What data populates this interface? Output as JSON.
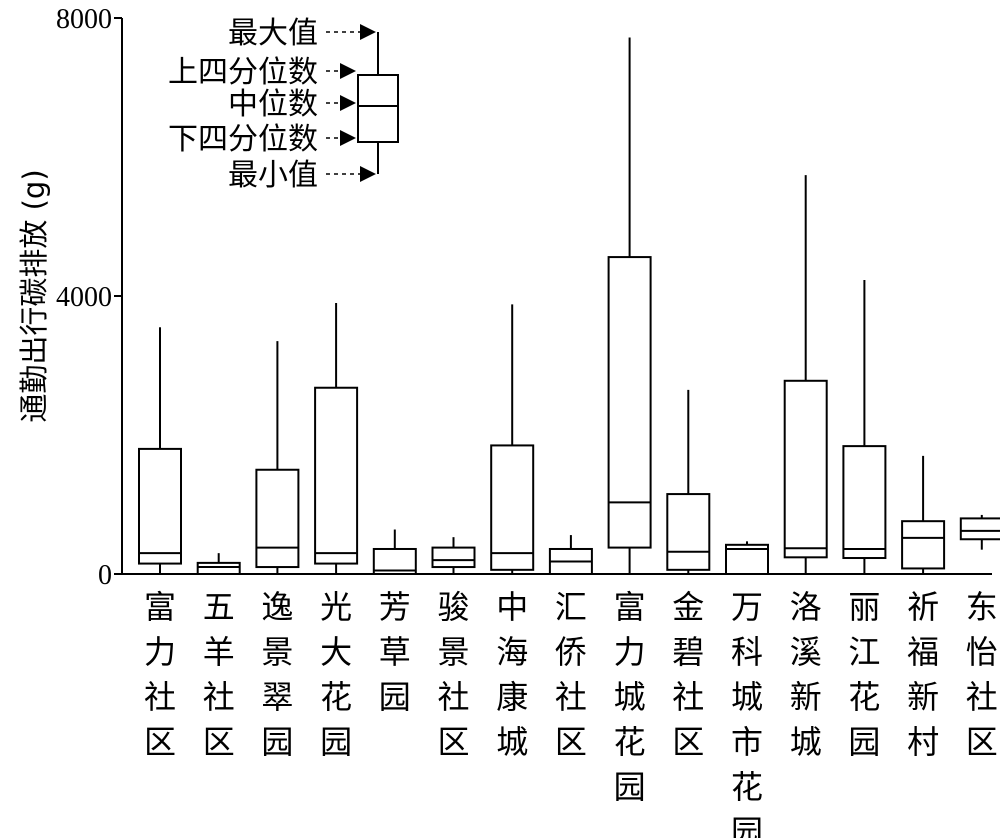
{
  "chart_data": {
    "type": "box",
    "ylabel": "通勤出行碳排放 (g)",
    "ylim": [
      0,
      8000
    ],
    "yticks": [
      "0",
      "4000",
      "8000"
    ],
    "categories": [
      "富力社区",
      "五羊社区",
      "逸景翠园",
      "光大花园",
      "芳草园",
      "骏景社区",
      "中海康城",
      "汇侨社区",
      "富力城花园",
      "金碧社区",
      "万科城市花园",
      "洛溪新城",
      "丽江花园",
      "祈福新村",
      "东怡社区"
    ],
    "boxes": [
      {
        "min": 0,
        "q1": 150,
        "median": 300,
        "q3": 1800,
        "max": 3550
      },
      {
        "min": 0,
        "q1": 0,
        "median": 100,
        "q3": 160,
        "max": 300
      },
      {
        "min": 0,
        "q1": 100,
        "median": 380,
        "q3": 1500,
        "max": 3350
      },
      {
        "min": 0,
        "q1": 150,
        "median": 300,
        "q3": 2680,
        "max": 3900
      },
      {
        "min": 0,
        "q1": 0,
        "median": 50,
        "q3": 360,
        "max": 640
      },
      {
        "min": 0,
        "q1": 100,
        "median": 200,
        "q3": 380,
        "max": 530
      },
      {
        "min": 0,
        "q1": 60,
        "median": 300,
        "q3": 1850,
        "max": 3880
      },
      {
        "min": 0,
        "q1": 0,
        "median": 180,
        "q3": 360,
        "max": 560
      },
      {
        "min": 0,
        "q1": 380,
        "median": 1030,
        "q3": 4560,
        "max": 7720
      },
      {
        "min": 0,
        "q1": 60,
        "median": 320,
        "q3": 1150,
        "max": 2650
      },
      {
        "min": 0,
        "q1": 0,
        "median": 360,
        "q3": 420,
        "max": 470
      },
      {
        "min": 0,
        "q1": 240,
        "median": 370,
        "q3": 2780,
        "max": 5740
      },
      {
        "min": 0,
        "q1": 230,
        "median": 360,
        "q3": 1840,
        "max": 4230
      },
      {
        "min": 0,
        "q1": 80,
        "median": 520,
        "q3": 760,
        "max": 1700
      },
      {
        "min": 350,
        "q1": 500,
        "median": 620,
        "q3": 800,
        "max": 850
      }
    ],
    "legend": {
      "items": [
        "最大值",
        "上四分位数",
        "中位数",
        "下四分位数",
        "最小值"
      ],
      "placement": "top-left"
    },
    "grid": false
  }
}
